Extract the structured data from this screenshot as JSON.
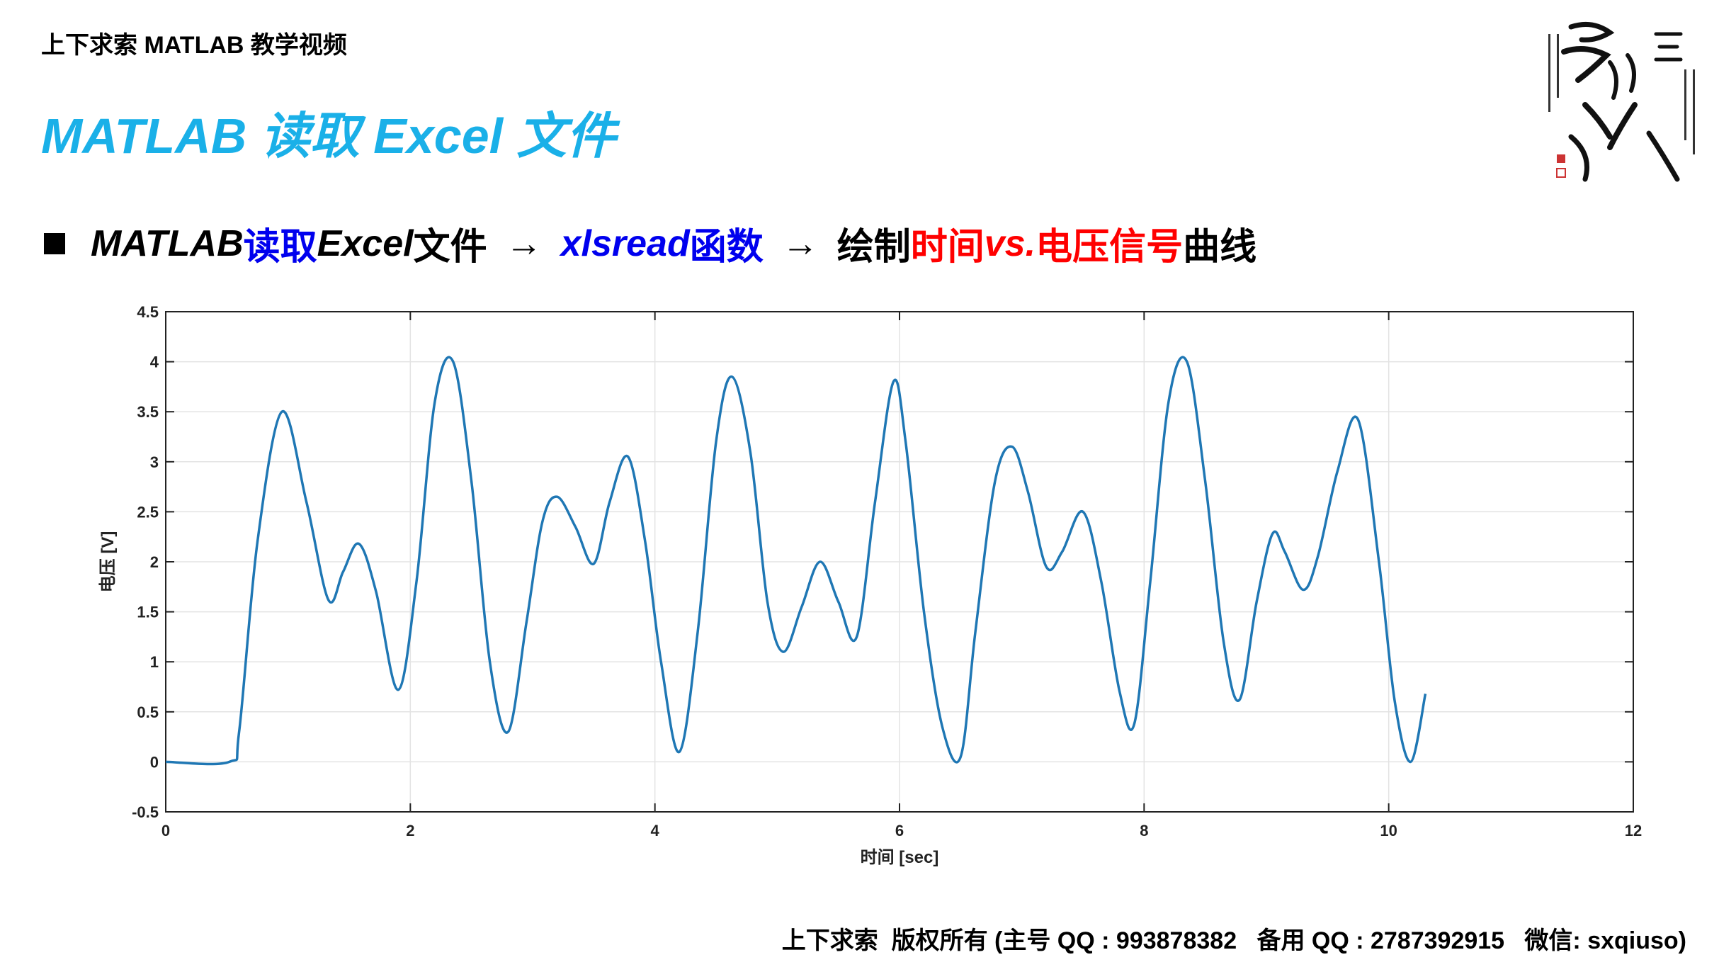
{
  "header": {
    "text": "上下求索 MATLAB 教学视频"
  },
  "title": {
    "text": "MATLAB 读取 Excel 文件",
    "color": "#1ab0e8"
  },
  "bullet": {
    "part1": "MATLAB ",
    "part2": "读取",
    "part3": " Excel ",
    "part4": "文件",
    "arrow1": "→",
    "part5": "xlsread",
    "part6": " 函数",
    "arrow2": "→",
    "part7": "绘制",
    "part8": "时间",
    "part9": " vs. ",
    "part10": "电压信号",
    "part11": "曲线",
    "colors": {
      "black": "#000000",
      "blue": "#0000ee",
      "red": "#ff0000"
    }
  },
  "footer": {
    "text": "上下求索  版权所有 (主号 QQ : 993878382   备用 QQ : 2787392915   微信: sxqiuso)"
  },
  "logo": {
    "icon": "calligraphy-seal-logo"
  },
  "chart_data": {
    "type": "line",
    "title": "",
    "xlabel": "时间 [sec]",
    "ylabel": "电压 [V]",
    "xlim": [
      0,
      12
    ],
    "ylim": [
      -0.5,
      4.5
    ],
    "xticks": [
      0,
      2,
      4,
      6,
      8,
      10,
      12
    ],
    "yticks": [
      -0.5,
      0,
      0.5,
      1,
      1.5,
      2,
      2.5,
      3,
      3.5,
      4,
      4.5
    ],
    "grid": true,
    "line_color": "#1f77b4",
    "series": [
      {
        "x": [
          0,
          0.52,
          0.6,
          0.75,
          0.95,
          1.15,
          1.33,
          1.45,
          1.58,
          1.72,
          1.9,
          2.05,
          2.2,
          2.35,
          2.5,
          2.65,
          2.8,
          2.95,
          3.08,
          3.2,
          3.35,
          3.5,
          3.63,
          3.78,
          3.92,
          4.05,
          4.2,
          4.35,
          4.5,
          4.63,
          4.78,
          4.92,
          5.05,
          5.2,
          5.35,
          5.5,
          5.65,
          5.8,
          5.95,
          6.05,
          6.2,
          6.35,
          6.5,
          6.62,
          6.78,
          6.92,
          7.05,
          7.2,
          7.33,
          7.5,
          7.65,
          7.8,
          7.92,
          8.05,
          8.2,
          8.35,
          8.5,
          8.65,
          8.78,
          8.92,
          9.05,
          9.15,
          9.3,
          9.42,
          9.58,
          9.75,
          9.92,
          10.05,
          10.18,
          10.3
        ],
        "y": [
          0,
          0,
          0.3,
          2.2,
          3.5,
          2.6,
          1.62,
          1.9,
          2.18,
          1.7,
          0.72,
          1.8,
          3.6,
          4.0,
          2.8,
          1.0,
          0.3,
          1.4,
          2.4,
          2.65,
          2.35,
          1.98,
          2.6,
          3.05,
          2.2,
          1.0,
          0.1,
          1.3,
          3.2,
          3.85,
          3.1,
          1.6,
          1.1,
          1.55,
          2.0,
          1.6,
          1.25,
          2.6,
          3.8,
          3.2,
          1.5,
          0.35,
          0.05,
          1.3,
          2.8,
          3.15,
          2.7,
          1.95,
          2.1,
          2.5,
          1.8,
          0.7,
          0.38,
          1.8,
          3.6,
          4.0,
          2.8,
          1.2,
          0.62,
          1.6,
          2.28,
          2.1,
          1.72,
          2.05,
          2.9,
          3.42,
          2.0,
          0.6,
          0.0,
          0.68
        ]
      }
    ]
  }
}
